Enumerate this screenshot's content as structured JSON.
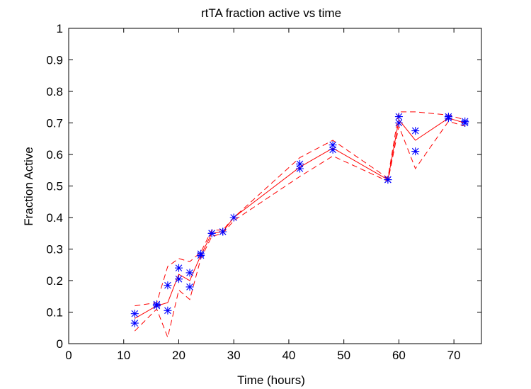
{
  "chart_data": {
    "type": "scatter",
    "title": "rtTA fraction active vs time",
    "xlabel": "Time (hours)",
    "ylabel": "Fraction Active",
    "xlim": [
      0,
      75
    ],
    "ylim": [
      0,
      1
    ],
    "x_ticks": [
      0,
      10,
      20,
      30,
      40,
      50,
      60,
      70
    ],
    "y_ticks": [
      0,
      0.1,
      0.2,
      0.3,
      0.4,
      0.5,
      0.6,
      0.7,
      0.8,
      0.9,
      1
    ],
    "x_tick_labels": [
      "0",
      "10",
      "20",
      "30",
      "40",
      "50",
      "60",
      "70"
    ],
    "y_tick_labels": [
      "0",
      "0.1",
      "0.2",
      "0.3",
      "0.4",
      "0.5",
      "0.6",
      "0.7",
      "0.8",
      "0.9",
      "1"
    ],
    "grid": false,
    "series": [
      {
        "style": "markers",
        "marker": "asterisk",
        "color": "#0000ff",
        "x": [
          12,
          12,
          16,
          16,
          18,
          18,
          20,
          20,
          22,
          22,
          24,
          24,
          26,
          26,
          28,
          28,
          30,
          42,
          42,
          48,
          48,
          58,
          58,
          60,
          60,
          63,
          63,
          69,
          69,
          72,
          72
        ],
        "y": [
          0.095,
          0.065,
          0.12,
          0.125,
          0.185,
          0.105,
          0.24,
          0.205,
          0.225,
          0.18,
          0.28,
          0.285,
          0.35,
          0.35,
          0.355,
          0.355,
          0.4,
          0.57,
          0.555,
          0.63,
          0.615,
          0.52,
          0.52,
          0.72,
          0.7,
          0.675,
          0.61,
          0.72,
          0.715,
          0.705,
          0.7
        ]
      },
      {
        "style": "solid",
        "color": "#ff0000",
        "x": [
          12,
          16,
          18,
          20,
          22,
          24,
          26,
          28,
          30,
          42,
          48,
          58,
          60,
          63,
          69,
          72
        ],
        "y": [
          0.08,
          0.12,
          0.13,
          0.22,
          0.2,
          0.28,
          0.35,
          0.355,
          0.4,
          0.56,
          0.62,
          0.52,
          0.71,
          0.645,
          0.715,
          0.7
        ]
      },
      {
        "style": "dashed",
        "color": "#ff0000",
        "x": [
          12,
          16,
          18,
          20,
          22,
          24,
          26,
          28,
          30,
          42,
          48,
          58,
          60,
          63,
          69,
          72
        ],
        "y": [
          0.12,
          0.13,
          0.245,
          0.27,
          0.26,
          0.29,
          0.36,
          0.36,
          0.4,
          0.59,
          0.645,
          0.525,
          0.735,
          0.735,
          0.725,
          0.71
        ]
      },
      {
        "style": "dashed",
        "color": "#ff0000",
        "x": [
          12,
          16,
          18,
          20,
          22,
          24,
          26,
          28,
          30,
          42,
          48,
          58,
          60,
          63,
          69,
          72
        ],
        "y": [
          0.04,
          0.11,
          0.02,
          0.17,
          0.14,
          0.27,
          0.34,
          0.35,
          0.39,
          0.53,
          0.595,
          0.515,
          0.69,
          0.555,
          0.705,
          0.69
        ]
      }
    ]
  }
}
